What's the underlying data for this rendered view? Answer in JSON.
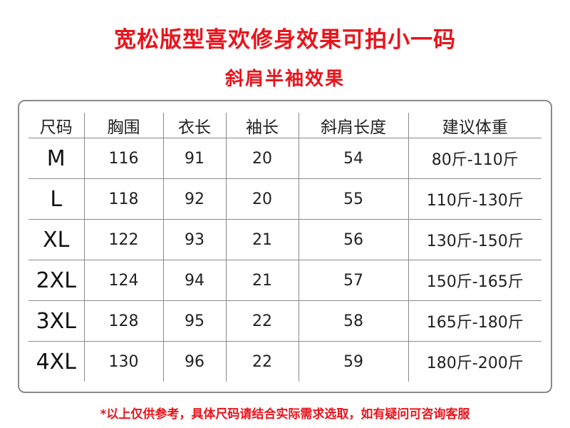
{
  "title": "宽松版型喜欢修身效果可拍小一码",
  "subtitle": "斜肩半袖效果",
  "table": {
    "headers": [
      "尺码",
      "胸围",
      "衣长",
      "袖长",
      "斜肩长度",
      "建议体重"
    ],
    "rows": [
      [
        "M",
        "116",
        "91",
        "20",
        "54",
        "80斤-110斤"
      ],
      [
        "L",
        "118",
        "92",
        "20",
        "55",
        "110斤-130斤"
      ],
      [
        "XL",
        "122",
        "93",
        "21",
        "56",
        "130斤-150斤"
      ],
      [
        "2XL",
        "124",
        "94",
        "21",
        "57",
        "150斤-165斤"
      ],
      [
        "3XL",
        "128",
        "95",
        "22",
        "58",
        "165斤-180斤"
      ],
      [
        "4XL",
        "130",
        "96",
        "22",
        "59",
        "180斤-200斤"
      ]
    ]
  },
  "note": "*以上仅供参考，具体尺码请结合实际需求选取，如有疑问可咨询客服",
  "colors": {
    "accent": "#e8141c",
    "border": "#8a8a8a"
  }
}
